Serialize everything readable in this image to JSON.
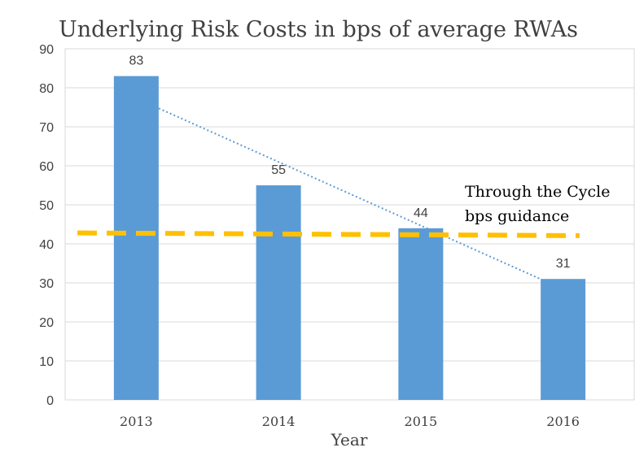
{
  "chart_data": {
    "type": "bar",
    "title": "Underlying Risk Costs in bps of  average RWAs",
    "xlabel": "Year",
    "ylabel": "",
    "categories": [
      "2013",
      "2014",
      "2015",
      "2016"
    ],
    "series": [
      {
        "name": "Underlying Risk Costs",
        "values": [
          83,
          55,
          44,
          31
        ]
      }
    ],
    "data_labels": [
      "83",
      "55",
      "44",
      "31"
    ],
    "ylim": [
      0,
      90
    ],
    "yticks": [
      0,
      10,
      20,
      30,
      40,
      50,
      60,
      70,
      80,
      90
    ],
    "grid": true,
    "legend": "none",
    "trendline": {
      "style": "dotted",
      "start": {
        "category": "2013",
        "value": 76
      },
      "end": {
        "category": "2016",
        "value": 31
      }
    },
    "guidance_line": {
      "style": "dashed",
      "start_value": 42.8,
      "end_value": 42.1
    },
    "annotation": {
      "line1": "Through the Cycle",
      "line2": "bps  guidance"
    },
    "colors": {
      "bar": "#5b9bd5",
      "trendline": "#5b9bd5",
      "guidance": "#ffc000",
      "grid": "#d9d9d9",
      "frame": "#d9d9d9"
    }
  }
}
